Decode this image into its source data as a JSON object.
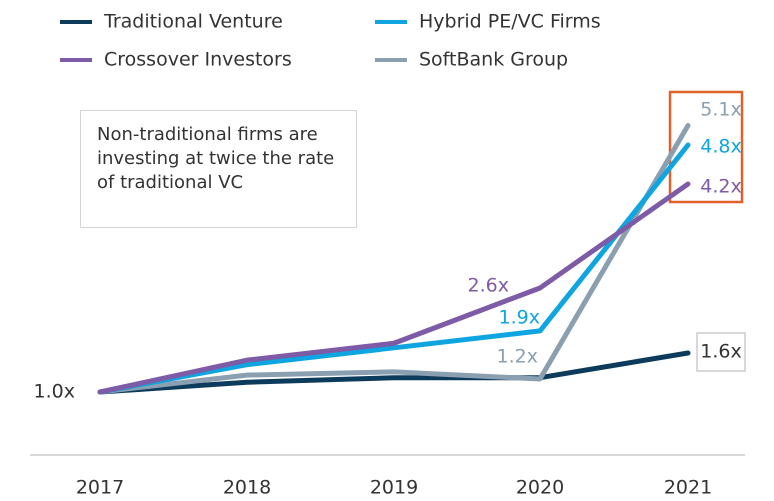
{
  "chart_data": {
    "type": "line",
    "categories": [
      "2017",
      "2018",
      "2019",
      "2020",
      "2021"
    ],
    "ylim": [
      0,
      6.5
    ],
    "annotation": "Non-traditional firms are investing at twice the rate of traditional VC",
    "series": [
      {
        "name": "Traditional Venture",
        "color": "#0d3b5c",
        "values": [
          1.0,
          1.15,
          1.22,
          1.22,
          1.6
        ],
        "value_labels": [
          "1.0x",
          null,
          null,
          null,
          "1.6x"
        ]
      },
      {
        "name": "Hybrid PE/VC Firms",
        "color": "#0ea5e0",
        "values": [
          1.0,
          1.42,
          1.68,
          1.94,
          4.8
        ],
        "value_labels": [
          null,
          null,
          null,
          "1.9x",
          "4.8x"
        ]
      },
      {
        "name": "Crossover Investors",
        "color": "#7d5ba6",
        "values": [
          1.0,
          1.49,
          1.75,
          2.6,
          4.2
        ],
        "value_labels": [
          null,
          null,
          null,
          "2.6x",
          "4.2x"
        ]
      },
      {
        "name": "SoftBank Group",
        "color": "#8a9fb0",
        "values": [
          1.0,
          1.26,
          1.31,
          1.2,
          5.1
        ],
        "value_labels": [
          null,
          null,
          null,
          "1.2x",
          "5.1x"
        ]
      }
    ]
  }
}
